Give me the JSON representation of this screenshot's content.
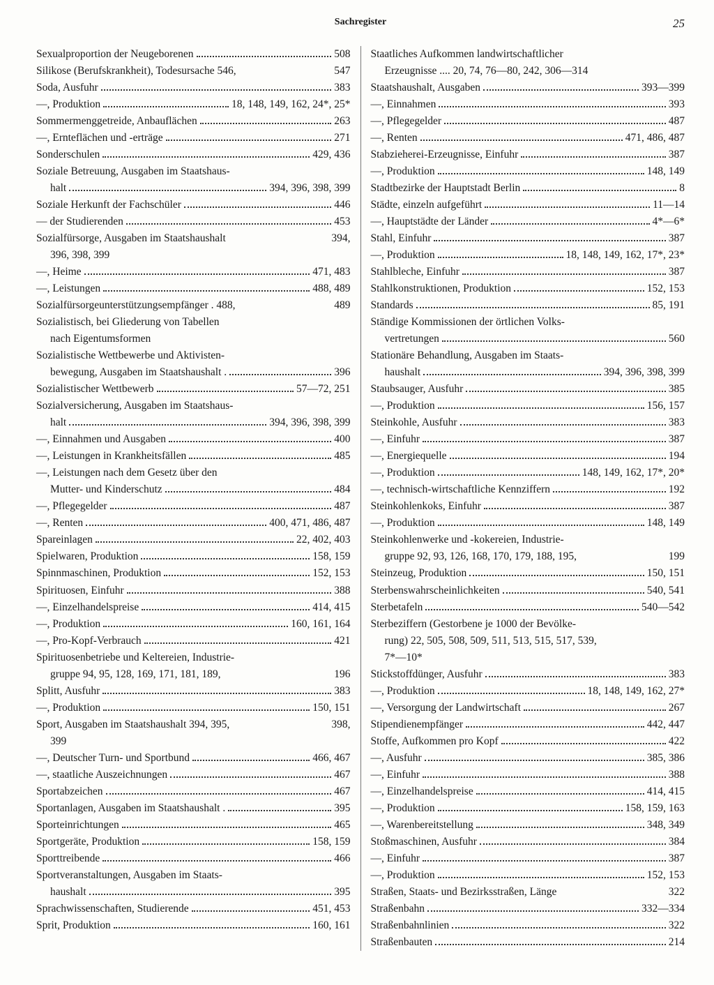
{
  "header": {
    "title": "Sachregister",
    "page": "25"
  },
  "left": [
    {
      "t": "entry",
      "label": "Sexualproportion der Neugeborenen",
      "pages": "508"
    },
    {
      "t": "entry",
      "label": "Silikose (Berufskrankheit), Todesursache 546,",
      "pages": "547",
      "nodots": true
    },
    {
      "t": "entry",
      "label": "Soda, Ausfuhr",
      "pages": "383"
    },
    {
      "t": "entry",
      "label": "—, Produktion",
      "pages": "18, 148, 149, 162, 24*, 25*"
    },
    {
      "t": "entry",
      "label": "Sommermenggetreide, Anbauflächen",
      "pages": "263"
    },
    {
      "t": "entry",
      "label": "—, Ernteflächen und -erträge",
      "pages": "271"
    },
    {
      "t": "entry",
      "label": "Sonderschulen",
      "pages": "429, 436"
    },
    {
      "t": "plain",
      "label": "Soziale Betreuung, Ausgaben im Staatshaus-"
    },
    {
      "t": "contflex",
      "label": "halt",
      "pages": "394, 396, 398, 399"
    },
    {
      "t": "entry",
      "label": "Soziale Herkunft der Fachschüler",
      "pages": "446"
    },
    {
      "t": "entry",
      "label": "— der Studierenden",
      "pages": "453"
    },
    {
      "t": "entry",
      "label": "Sozialfürsorge, Ausgaben im Staatshaushalt",
      "pages": "394,",
      "nodots": true
    },
    {
      "t": "cont",
      "label": "396, 398, 399"
    },
    {
      "t": "entry",
      "label": "—, Heime",
      "pages": "471, 483"
    },
    {
      "t": "entry",
      "label": "—, Leistungen",
      "pages": "488, 489"
    },
    {
      "t": "entry",
      "label": "Sozialfürsorgeunterstützungsempfänger . 488,",
      "pages": "489",
      "nodots": true
    },
    {
      "t": "plain",
      "label": "Sozialistisch, bei Gliederung von Tabellen"
    },
    {
      "t": "cont",
      "label": "nach Eigentumsformen"
    },
    {
      "t": "plain",
      "label": "Sozialistische Wettbewerbe und Aktivisten-"
    },
    {
      "t": "contflex",
      "label": "bewegung, Ausgaben im Staatshaushalt .",
      "pages": "396"
    },
    {
      "t": "entry",
      "label": "Sozialistischer Wettbewerb",
      "pages": "57—72, 251"
    },
    {
      "t": "plain",
      "label": "Sozialversicherung, Ausgaben im Staatshaus-"
    },
    {
      "t": "contflex",
      "label": "halt",
      "pages": "394, 396, 398, 399"
    },
    {
      "t": "entry",
      "label": "—, Einnahmen und Ausgaben",
      "pages": "400"
    },
    {
      "t": "entry",
      "label": "—, Leistungen in Krankheitsfällen",
      "pages": "485"
    },
    {
      "t": "plain",
      "label": "—, Leistungen nach dem Gesetz über den"
    },
    {
      "t": "contflex",
      "label": "Mutter- und Kinderschutz",
      "pages": "484"
    },
    {
      "t": "entry",
      "label": "—, Pflegegelder",
      "pages": "487"
    },
    {
      "t": "entry",
      "label": "—, Renten",
      "pages": "400, 471, 486, 487"
    },
    {
      "t": "entry",
      "label": "Spareinlagen",
      "pages": "22, 402, 403"
    },
    {
      "t": "entry",
      "label": "Spielwaren, Produktion",
      "pages": "158, 159"
    },
    {
      "t": "entry",
      "label": "Spinnmaschinen, Produktion",
      "pages": "152, 153"
    },
    {
      "t": "entry",
      "label": "Spirituosen, Einfuhr",
      "pages": "388"
    },
    {
      "t": "entry",
      "label": "—, Einzelhandelspreise",
      "pages": "414, 415"
    },
    {
      "t": "entry",
      "label": "—, Produktion",
      "pages": "160, 161, 164"
    },
    {
      "t": "entry",
      "label": "—, Pro-Kopf-Verbrauch",
      "pages": "421"
    },
    {
      "t": "plain",
      "label": "Spirituosenbetriebe und Keltereien, Industrie-"
    },
    {
      "t": "contflex",
      "label": "gruppe 94, 95, 128, 169, 171, 181, 189,",
      "pages": "196",
      "nodots": true
    },
    {
      "t": "entry",
      "label": "Splitt, Ausfuhr",
      "pages": "383"
    },
    {
      "t": "entry",
      "label": "—, Produktion",
      "pages": "150, 151"
    },
    {
      "t": "entry",
      "label": "Sport, Ausgaben im Staatshaushalt 394, 395,",
      "pages": "398,",
      "nodots": true
    },
    {
      "t": "cont",
      "label": "399"
    },
    {
      "t": "entry",
      "label": "—, Deutscher Turn- und Sportbund",
      "pages": "466, 467"
    },
    {
      "t": "entry",
      "label": "—, staatliche Auszeichnungen",
      "pages": "467"
    },
    {
      "t": "entry",
      "label": "Sportabzeichen",
      "pages": "467"
    },
    {
      "t": "entry",
      "label": "Sportanlagen, Ausgaben im Staatshaushalt .",
      "pages": "395"
    },
    {
      "t": "entry",
      "label": "Sporteinrichtungen",
      "pages": "465"
    },
    {
      "t": "entry",
      "label": "Sportgeräte, Produktion",
      "pages": "158, 159"
    },
    {
      "t": "entry",
      "label": "Sporttreibende",
      "pages": "466"
    },
    {
      "t": "plain",
      "label": "Sportveranstaltungen, Ausgaben im Staats-"
    },
    {
      "t": "contflex",
      "label": "haushalt",
      "pages": "395"
    },
    {
      "t": "entry",
      "label": "Sprachwissenschaften, Studierende",
      "pages": "451, 453"
    },
    {
      "t": "entry",
      "label": "Sprit, Produktion",
      "pages": "160, 161"
    }
  ],
  "right": [
    {
      "t": "plain",
      "label": "Staatliches Aufkommen landwirtschaftlicher"
    },
    {
      "t": "contflex",
      "label": "Erzeugnisse .... 20, 74, 76—80, 242, 306—314",
      "pages": "",
      "nodots": true
    },
    {
      "t": "entry",
      "label": "Staatshaushalt, Ausgaben",
      "pages": "393—399"
    },
    {
      "t": "entry",
      "label": "—, Einnahmen",
      "pages": "393"
    },
    {
      "t": "entry",
      "label": "—, Pflegegelder",
      "pages": "487"
    },
    {
      "t": "entry",
      "label": "—, Renten",
      "pages": "471, 486, 487"
    },
    {
      "t": "entry",
      "label": "Stabzieherei-Erzeugnisse, Einfuhr",
      "pages": "387"
    },
    {
      "t": "entry",
      "label": "—, Produktion",
      "pages": "148, 149"
    },
    {
      "t": "entry",
      "label": "Stadtbezirke der Hauptstadt Berlin",
      "pages": "8"
    },
    {
      "t": "entry",
      "label": "Städte, einzeln aufgeführt",
      "pages": "11—14"
    },
    {
      "t": "entry",
      "label": "—, Hauptstädte der Länder",
      "pages": "4*—6*"
    },
    {
      "t": "entry",
      "label": "Stahl, Einfuhr",
      "pages": "387"
    },
    {
      "t": "entry",
      "label": "—, Produktion",
      "pages": "18, 148, 149, 162, 17*, 23*"
    },
    {
      "t": "entry",
      "label": "Stahlbleche, Einfuhr",
      "pages": "387"
    },
    {
      "t": "entry",
      "label": "Stahlkonstruktionen, Produktion",
      "pages": "152, 153"
    },
    {
      "t": "entry",
      "label": "Standards",
      "pages": "85, 191"
    },
    {
      "t": "plain",
      "label": "Ständige Kommissionen der örtlichen Volks-"
    },
    {
      "t": "contflex",
      "label": "vertretungen",
      "pages": "560"
    },
    {
      "t": "plain",
      "label": "Stationäre Behandlung, Ausgaben im Staats-"
    },
    {
      "t": "contflex",
      "label": "haushalt",
      "pages": "394, 396, 398, 399"
    },
    {
      "t": "entry",
      "label": "Staubsauger, Ausfuhr",
      "pages": "385"
    },
    {
      "t": "entry",
      "label": "—, Produktion",
      "pages": "156, 157"
    },
    {
      "t": "entry",
      "label": "Steinkohle, Ausfuhr",
      "pages": "383"
    },
    {
      "t": "entry",
      "label": "—, Einfuhr",
      "pages": "387"
    },
    {
      "t": "entry",
      "label": "—, Energiequelle",
      "pages": "194"
    },
    {
      "t": "entry",
      "label": "—, Produktion",
      "pages": "148, 149, 162, 17*, 20*"
    },
    {
      "t": "entry",
      "label": "—, technisch-wirtschaftliche Kennziffern",
      "pages": "192"
    },
    {
      "t": "entry",
      "label": "Steinkohlenkoks, Einfuhr",
      "pages": "387"
    },
    {
      "t": "entry",
      "label": "—, Produktion",
      "pages": "148, 149"
    },
    {
      "t": "plain",
      "label": "Steinkohlenwerke und -kokereien, Industrie-"
    },
    {
      "t": "contflex",
      "label": "gruppe 92, 93, 126, 168, 170, 179, 188, 195,",
      "pages": "199",
      "nodots": true
    },
    {
      "t": "entry",
      "label": "Steinzeug, Produktion",
      "pages": "150, 151"
    },
    {
      "t": "entry",
      "label": "Sterbenswahrscheinlichkeiten",
      "pages": "540, 541"
    },
    {
      "t": "entry",
      "label": "Sterbetafeln",
      "pages": "540—542"
    },
    {
      "t": "plain",
      "label": "Sterbeziffern (Gestorbene je 1000 der Bevölke-"
    },
    {
      "t": "cont",
      "label": "rung) 22, 505, 508, 509, 511, 513, 515, 517, 539,"
    },
    {
      "t": "cont",
      "label": "7*—10*"
    },
    {
      "t": "entry",
      "label": "Stickstoffdünger, Ausfuhr",
      "pages": "383"
    },
    {
      "t": "entry",
      "label": "—, Produktion",
      "pages": "18, 148, 149, 162, 27*"
    },
    {
      "t": "entry",
      "label": "—, Versorgung der Landwirtschaft",
      "pages": "267"
    },
    {
      "t": "entry",
      "label": "Stipendienempfänger",
      "pages": "442, 447"
    },
    {
      "t": "entry",
      "label": "Stoffe, Aufkommen pro Kopf",
      "pages": "422"
    },
    {
      "t": "entry",
      "label": "—, Ausfuhr",
      "pages": "385, 386"
    },
    {
      "t": "entry",
      "label": "—, Einfuhr",
      "pages": "388"
    },
    {
      "t": "entry",
      "label": "—, Einzelhandelspreise",
      "pages": "414, 415"
    },
    {
      "t": "entry",
      "label": "—, Produktion",
      "pages": "158, 159, 163"
    },
    {
      "t": "entry",
      "label": "—, Warenbereitstellung",
      "pages": "348, 349"
    },
    {
      "t": "entry",
      "label": "Stoßmaschinen, Ausfuhr",
      "pages": "384"
    },
    {
      "t": "entry",
      "label": "—, Einfuhr",
      "pages": "387"
    },
    {
      "t": "entry",
      "label": "—, Produktion",
      "pages": "152, 153"
    },
    {
      "t": "entry",
      "label": "Straßen, Staats- und Bezirksstraßen, Länge",
      "pages": "322",
      "nodots": true
    },
    {
      "t": "entry",
      "label": "Straßenbahn",
      "pages": "332—334"
    },
    {
      "t": "entry",
      "label": "Straßenbahnlinien",
      "pages": "322"
    },
    {
      "t": "entry",
      "label": "Straßenbauten",
      "pages": "214"
    }
  ]
}
